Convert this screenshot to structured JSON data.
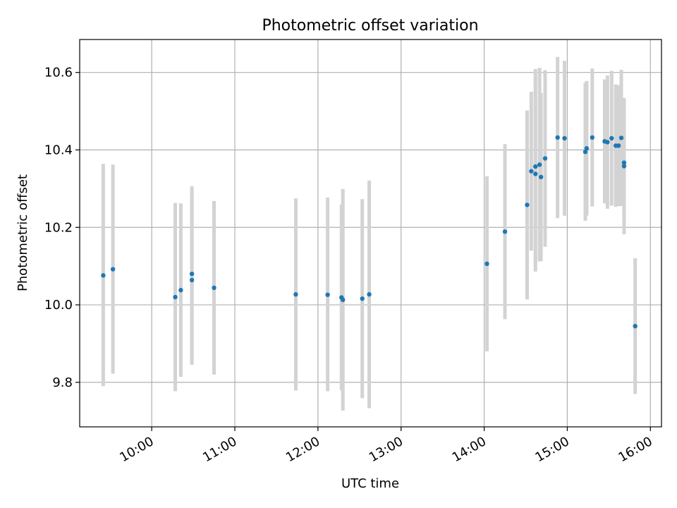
{
  "chart_data": {
    "type": "scatter",
    "title": "Photometric offset variation",
    "xlabel": "UTC time",
    "ylabel": "Photometric offset",
    "xlim": [
      "09:08",
      "16:08"
    ],
    "ylim": [
      9.685,
      10.685
    ],
    "x_ticks": [
      "10:00",
      "11:00",
      "12:00",
      "13:00",
      "14:00",
      "15:00",
      "16:00"
    ],
    "y_ticks": [
      "9.8",
      "10.0",
      "10.2",
      "10.4",
      "10.6"
    ],
    "grid": true,
    "colors": {
      "point": "#1f77b4",
      "errorbar": "#d3d3d3",
      "grid": "#b0b0b0",
      "axis": "#000000"
    },
    "series": [
      {
        "points": [
          {
            "x": "09:25",
            "y": 10.076,
            "ylow": 9.79,
            "yhigh": 10.364
          },
          {
            "x": "09:32",
            "y": 10.092,
            "ylow": 9.822,
            "yhigh": 10.362
          },
          {
            "x": "10:17",
            "y": 10.02,
            "ylow": 9.777,
            "yhigh": 10.263
          },
          {
            "x": "10:21",
            "y": 10.038,
            "ylow": 9.814,
            "yhigh": 10.262
          },
          {
            "x": "10:29",
            "y": 10.064,
            "ylow": 9.845,
            "yhigh": 10.283
          },
          {
            "x": "10:29",
            "y": 10.08,
            "ylow": 9.854,
            "yhigh": 10.306
          },
          {
            "x": "10:45",
            "y": 10.044,
            "ylow": 9.82,
            "yhigh": 10.268
          },
          {
            "x": "11:44",
            "y": 10.027,
            "ylow": 9.779,
            "yhigh": 10.275
          },
          {
            "x": "12:07",
            "y": 10.026,
            "ylow": 9.777,
            "yhigh": 10.277
          },
          {
            "x": "12:17",
            "y": 10.019,
            "ylow": 9.779,
            "yhigh": 10.259
          },
          {
            "x": "12:18",
            "y": 10.013,
            "ylow": 9.727,
            "yhigh": 10.299
          },
          {
            "x": "12:32",
            "y": 10.016,
            "ylow": 9.759,
            "yhigh": 10.273
          },
          {
            "x": "12:37",
            "y": 10.027,
            "ylow": 9.733,
            "yhigh": 10.321
          },
          {
            "x": "14:02",
            "y": 10.106,
            "ylow": 9.88,
            "yhigh": 10.332
          },
          {
            "x": "14:15",
            "y": 10.189,
            "ylow": 9.963,
            "yhigh": 10.415
          },
          {
            "x": "14:31",
            "y": 10.258,
            "ylow": 10.014,
            "yhigh": 10.502
          },
          {
            "x": "14:34",
            "y": 10.345,
            "ylow": 10.14,
            "yhigh": 10.55
          },
          {
            "x": "14:37",
            "y": 10.338,
            "ylow": 10.086,
            "yhigh": 10.59
          },
          {
            "x": "14:37",
            "y": 10.357,
            "ylow": 10.105,
            "yhigh": 10.609
          },
          {
            "x": "14:40",
            "y": 10.362,
            "ylow": 10.112,
            "yhigh": 10.612
          },
          {
            "x": "14:41",
            "y": 10.33,
            "ylow": 10.113,
            "yhigh": 10.547
          },
          {
            "x": "14:44",
            "y": 10.378,
            "ylow": 10.15,
            "yhigh": 10.606
          },
          {
            "x": "14:53",
            "y": 10.432,
            "ylow": 10.224,
            "yhigh": 10.64
          },
          {
            "x": "14:58",
            "y": 10.43,
            "ylow": 10.23,
            "yhigh": 10.63
          },
          {
            "x": "15:13",
            "y": 10.395,
            "ylow": 10.217,
            "yhigh": 10.573
          },
          {
            "x": "15:14",
            "y": 10.404,
            "ylow": 10.23,
            "yhigh": 10.578
          },
          {
            "x": "15:18",
            "y": 10.432,
            "ylow": 10.254,
            "yhigh": 10.61
          },
          {
            "x": "15:27",
            "y": 10.422,
            "ylow": 10.262,
            "yhigh": 10.582
          },
          {
            "x": "15:29",
            "y": 10.42,
            "ylow": 10.248,
            "yhigh": 10.592
          },
          {
            "x": "15:32",
            "y": 10.43,
            "ylow": 10.256,
            "yhigh": 10.604
          },
          {
            "x": "15:35",
            "y": 10.411,
            "ylow": 10.253,
            "yhigh": 10.569
          },
          {
            "x": "15:37",
            "y": 10.411,
            "ylow": 10.255,
            "yhigh": 10.567
          },
          {
            "x": "15:39",
            "y": 10.431,
            "ylow": 10.255,
            "yhigh": 10.607
          },
          {
            "x": "15:41",
            "y": 10.367,
            "ylow": 10.222,
            "yhigh": 10.512
          },
          {
            "x": "15:41",
            "y": 10.358,
            "ylow": 10.182,
            "yhigh": 10.534
          },
          {
            "x": "15:49",
            "y": 9.945,
            "ylow": 9.77,
            "yhigh": 10.12
          }
        ]
      }
    ]
  }
}
